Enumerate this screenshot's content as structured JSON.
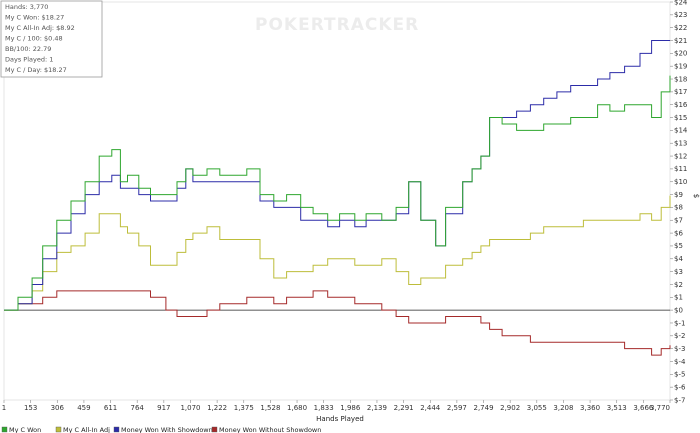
{
  "watermark": "POKERTRACKER",
  "stats": [
    "Hands: 3,770",
    "My C Won: $18.27",
    "My C All-In Adj: $8.92",
    "My C / 100: $0.48",
    "BB/100: 22.79",
    "Days Played: 1",
    "My C / Day: $18.27"
  ],
  "colors": {
    "my_c_won": "#2ea62e",
    "my_c_all_in_adj": "#bdbd3a",
    "won_with_showdown": "#2c2ca8",
    "won_without_showdown": "#a52a2a"
  },
  "chart_data": {
    "type": "line",
    "xlabel": "Hands Played",
    "ylabel": "$",
    "xlim": [
      1,
      3770
    ],
    "ylim": [
      -7,
      24
    ],
    "x_ticks": [
      "1",
      "153",
      "306",
      "459",
      "611",
      "764",
      "917",
      "1,070",
      "1,222",
      "1,375",
      "1,528",
      "1,680",
      "1,833",
      "1,986",
      "2,139",
      "2,291",
      "2,444",
      "2,597",
      "2,749",
      "2,902",
      "3,055",
      "3,208",
      "3,360",
      "3,513",
      "3,666",
      "3,770"
    ],
    "y_ticks": [
      "$-7",
      "$-6",
      "$-5",
      "$-4",
      "$-3",
      "$-2",
      "$-1",
      "$0",
      "$1",
      "$2",
      "$3",
      "$4",
      "$5",
      "$6",
      "$7",
      "$8",
      "$9",
      "$10",
      "$11",
      "$12",
      "$13",
      "$14",
      "$15",
      "$16",
      "$17",
      "$18",
      "$19",
      "$20",
      "$21",
      "$22",
      "$23",
      "$24"
    ],
    "legend_position": "bottom",
    "grid": false,
    "series": [
      {
        "name": "My C Won",
        "color_key": "my_c_won",
        "x": [
          1,
          80,
          160,
          220,
          300,
          380,
          460,
          540,
          611,
          660,
          700,
          764,
          830,
          917,
          980,
          1030,
          1070,
          1150,
          1222,
          1300,
          1375,
          1450,
          1528,
          1600,
          1680,
          1750,
          1833,
          1900,
          1986,
          2050,
          2139,
          2220,
          2291,
          2360,
          2444,
          2500,
          2597,
          2650,
          2700,
          2749,
          2820,
          2902,
          2980,
          3055,
          3130,
          3208,
          3280,
          3360,
          3430,
          3513,
          3600,
          3666,
          3720,
          3770
        ],
        "y": [
          0,
          1,
          2.5,
          5,
          7,
          8.5,
          10,
          12,
          12.5,
          10,
          10.5,
          9.5,
          9,
          9,
          10,
          11,
          10.5,
          11,
          10.5,
          10.5,
          11,
          9,
          8.5,
          9,
          8,
          7.5,
          7,
          7.5,
          7,
          7.5,
          7,
          8,
          10,
          7,
          5,
          8,
          10,
          11,
          12,
          15,
          14.5,
          14,
          14,
          14.5,
          14.5,
          15,
          15,
          16,
          15.5,
          16,
          16,
          15,
          17,
          18.27
        ]
      },
      {
        "name": "My C All-In Adj",
        "color_key": "my_c_all_in_adj",
        "x": [
          1,
          80,
          160,
          220,
          300,
          380,
          460,
          540,
          611,
          660,
          700,
          764,
          830,
          917,
          980,
          1030,
          1070,
          1150,
          1222,
          1300,
          1375,
          1450,
          1528,
          1600,
          1680,
          1750,
          1833,
          1900,
          1986,
          2050,
          2139,
          2220,
          2291,
          2360,
          2444,
          2500,
          2597,
          2650,
          2700,
          2749,
          2820,
          2902,
          2980,
          3055,
          3130,
          3208,
          3280,
          3360,
          3430,
          3513,
          3600,
          3666,
          3720,
          3770
        ],
        "y": [
          0,
          0.5,
          1.5,
          3,
          4.5,
          5,
          6,
          7.5,
          7.5,
          6.5,
          6,
          5,
          3.5,
          3.5,
          4.5,
          5.5,
          6,
          6.5,
          5.5,
          5.5,
          5.5,
          4,
          2.5,
          3,
          3,
          3.5,
          4,
          4,
          3.5,
          3.5,
          4,
          3,
          2,
          2.5,
          2.5,
          3.5,
          4,
          4.5,
          5,
          5.5,
          5.5,
          5.5,
          6,
          6.5,
          6.5,
          6.5,
          7,
          7,
          7,
          7,
          7.5,
          7,
          8,
          8.92
        ]
      },
      {
        "name": "Money Won With Showdown",
        "color_key": "won_with_showdown",
        "x": [
          1,
          80,
          160,
          220,
          300,
          380,
          460,
          540,
          611,
          660,
          700,
          764,
          830,
          917,
          980,
          1030,
          1070,
          1150,
          1222,
          1300,
          1375,
          1450,
          1528,
          1600,
          1680,
          1750,
          1833,
          1900,
          1986,
          2050,
          2139,
          2220,
          2291,
          2360,
          2444,
          2500,
          2597,
          2650,
          2700,
          2749,
          2820,
          2902,
          2980,
          3055,
          3130,
          3208,
          3280,
          3360,
          3430,
          3513,
          3600,
          3666,
          3720,
          3770
        ],
        "y": [
          0,
          0.5,
          2,
          4,
          6,
          7.5,
          9,
          10,
          10.5,
          9.5,
          9.5,
          9,
          8.5,
          8.5,
          9.5,
          11,
          10,
          10,
          10,
          10,
          10,
          8.5,
          8,
          8,
          7,
          7,
          6.5,
          7,
          6.5,
          7,
          7,
          7.5,
          10,
          7,
          5,
          7.5,
          10,
          11,
          12,
          15,
          15,
          15.5,
          16,
          16.5,
          17,
          17.5,
          17.5,
          18,
          18.5,
          19,
          20,
          21,
          21,
          21
        ]
      },
      {
        "name": "Money Won Without Showdown",
        "color_key": "won_without_showdown",
        "x": [
          1,
          80,
          160,
          220,
          300,
          380,
          460,
          540,
          611,
          660,
          700,
          764,
          830,
          917,
          980,
          1030,
          1070,
          1150,
          1222,
          1300,
          1375,
          1450,
          1528,
          1600,
          1680,
          1750,
          1833,
          1900,
          1986,
          2050,
          2139,
          2220,
          2291,
          2360,
          2444,
          2500,
          2597,
          2650,
          2700,
          2749,
          2820,
          2902,
          2980,
          3055,
          3130,
          3208,
          3280,
          3360,
          3430,
          3513,
          3600,
          3666,
          3720,
          3770
        ],
        "y": [
          0,
          0.5,
          0.5,
          1,
          1.5,
          1.5,
          1.5,
          1.5,
          1.5,
          1.5,
          1.5,
          1.5,
          1,
          0,
          -0.5,
          -0.5,
          -0.5,
          0,
          0.5,
          0.5,
          1,
          1,
          0.5,
          1,
          1,
          1.5,
          1,
          1,
          0.5,
          0.5,
          0,
          -0.5,
          -1,
          -1,
          -1,
          -0.5,
          -0.5,
          -0.5,
          -1,
          -1.5,
          -2,
          -2,
          -2.5,
          -2.5,
          -2.5,
          -2.5,
          -2.5,
          -2.5,
          -2.5,
          -3,
          -3,
          -3.5,
          -3,
          -2.73
        ]
      }
    ]
  }
}
